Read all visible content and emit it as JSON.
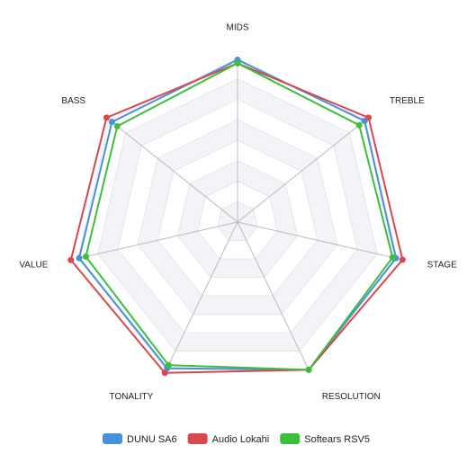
{
  "chart_data": {
    "type": "radar",
    "categories": [
      "MIDS",
      "TREBLE",
      "STAGE",
      "RESOLUTION",
      "TONALITY",
      "VALUE",
      "BASS"
    ],
    "rlim": [
      0,
      10
    ],
    "legend": "bottom",
    "series": [
      {
        "name": "DUNU SA6",
        "color": "#4a90d9",
        "values": [
          9.5,
          9.5,
          9.5,
          9.6,
          9.5,
          9.5,
          9.4
        ]
      },
      {
        "name": "Audio Lokahi",
        "color": "#d9484b",
        "values": [
          9.3,
          9.8,
          9.9,
          9.6,
          9.8,
          10,
          9.8
        ]
      },
      {
        "name": "Softears RSV5",
        "color": "#3cbf3c",
        "values": [
          9.3,
          9.1,
          9.3,
          9.6,
          9.3,
          9.1,
          9.0
        ]
      }
    ]
  }
}
